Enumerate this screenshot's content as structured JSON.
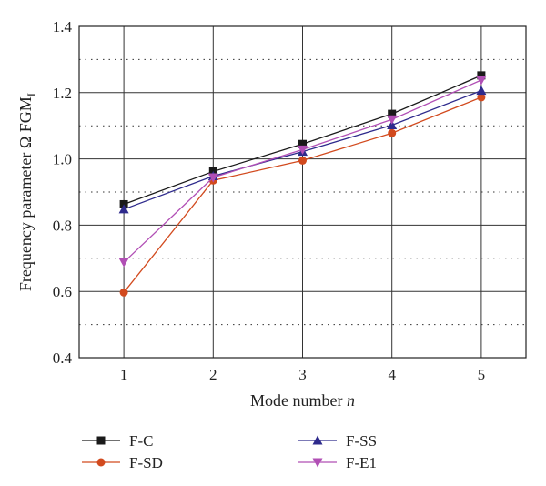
{
  "chart_data": {
    "type": "line",
    "x": [
      1,
      2,
      3,
      4,
      5
    ],
    "xlim": [
      0.5,
      5.5
    ],
    "ylim": [
      0.4,
      1.4
    ],
    "x_ticks": [
      "1",
      "2",
      "3",
      "4",
      "5"
    ],
    "y_ticks": [
      "0.4",
      "0.6",
      "0.8",
      "1.0",
      "1.2",
      "1.4"
    ],
    "xlabel": "Mode number",
    "xlabel_var": "n",
    "ylabel": "Frequency parameter Ω FGM",
    "ylabel_sub": "I",
    "grid": true,
    "legend_position": "bottom",
    "series": [
      {
        "name": "F-C",
        "marker": "square",
        "color": "#1a1a1a",
        "values": [
          0.863,
          0.962,
          1.045,
          1.136,
          1.252
        ]
      },
      {
        "name": "F-SD",
        "marker": "circle",
        "color": "#d24a1e",
        "values": [
          0.597,
          0.935,
          0.995,
          1.078,
          1.186
        ]
      },
      {
        "name": "F-SS",
        "marker": "triangle-up",
        "color": "#2e2a8c",
        "values": [
          0.848,
          0.948,
          1.022,
          1.102,
          1.206
        ]
      },
      {
        "name": "F-E1",
        "marker": "triangle-down",
        "color": "#b14fb5",
        "values": [
          0.688,
          0.944,
          1.028,
          1.119,
          1.238
        ]
      }
    ]
  }
}
